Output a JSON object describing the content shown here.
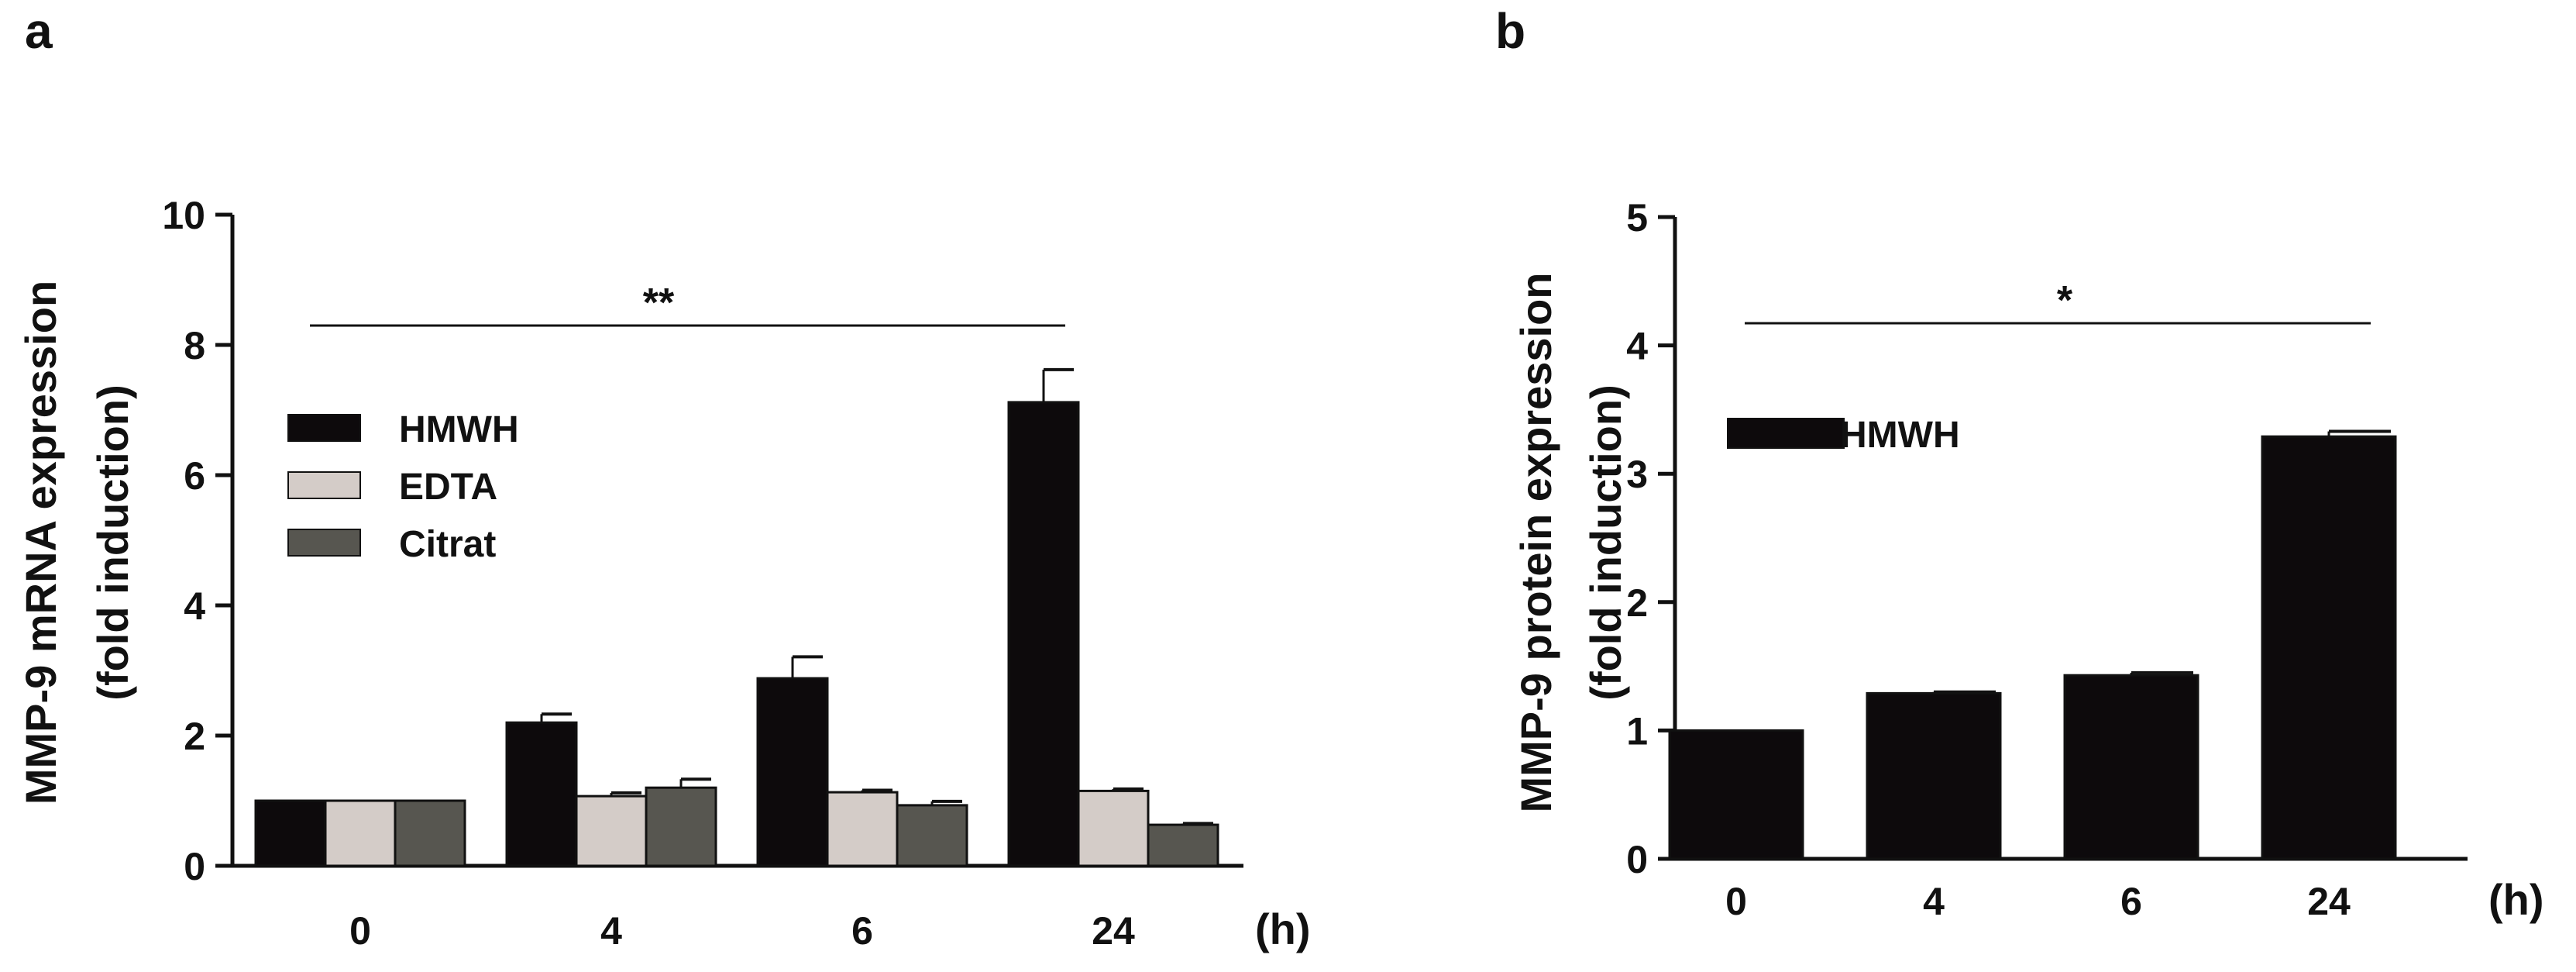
{
  "chart_data": [
    {
      "panel": "a",
      "type": "bar",
      "ylabel": "MMP-9 mRNA expression",
      "ylabel2": "(fold induction)",
      "xunit": "(h)",
      "categories": [
        "0",
        "4",
        "6",
        "24"
      ],
      "ylim": [
        0,
        10
      ],
      "yticks": [
        "0",
        "2",
        "4",
        "6",
        "8",
        "10"
      ],
      "series": [
        {
          "name": "HMWH",
          "color": "#0d0a0c",
          "values": [
            1.0,
            2.2,
            2.88,
            7.12
          ],
          "errors": [
            0.0,
            0.13,
            0.33,
            0.5
          ]
        },
        {
          "name": "EDTA",
          "color": "#d4ccc8",
          "values": [
            1.0,
            1.07,
            1.13,
            1.15
          ],
          "errors": [
            0.0,
            0.05,
            0.03,
            0.03
          ]
        },
        {
          "name": "Citrat",
          "color": "#575650",
          "values": [
            1.0,
            1.2,
            0.93,
            0.63
          ],
          "errors": [
            0.0,
            0.13,
            0.06,
            0.02
          ]
        }
      ],
      "significance": "**"
    },
    {
      "panel": "b",
      "type": "bar",
      "ylabel": "MMP-9 protein expression",
      "ylabel2": "(fold induction)",
      "xunit": "(h)",
      "categories": [
        "0",
        "4",
        "6",
        "24"
      ],
      "ylim": [
        0,
        5
      ],
      "yticks": [
        "0",
        "1",
        "2",
        "3",
        "4",
        "5"
      ],
      "series": [
        {
          "name": "HMWH",
          "color": "#0d0a0c",
          "values": [
            1.0,
            1.29,
            1.43,
            3.29
          ],
          "errors": [
            0.0,
            0.01,
            0.02,
            0.04
          ]
        }
      ],
      "significance": "*"
    }
  ]
}
